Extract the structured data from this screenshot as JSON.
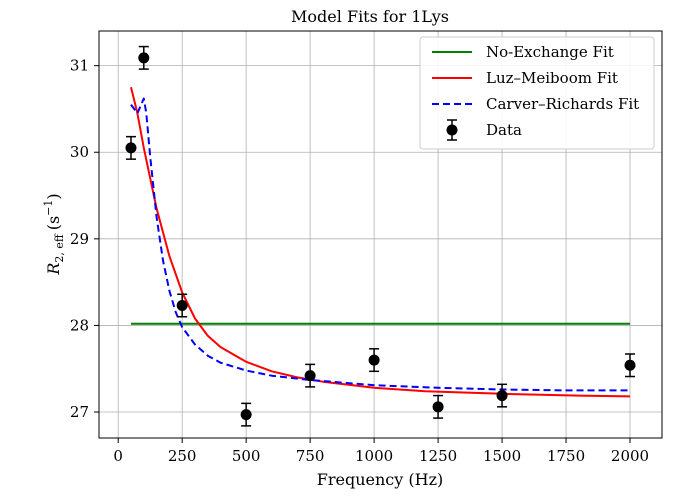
{
  "chart_data": {
    "type": "line",
    "title": "Model Fits for 1Lys",
    "xlabel": "Frequency (Hz)",
    "ylabel": "R2,eff (s−1)",
    "ylabel_parts": {
      "base": "R",
      "sub": "2, eff",
      "unit_open": "(s",
      "unit_sup": "−1",
      "unit_close": ")"
    },
    "xlim": [
      -75,
      2125
    ],
    "ylim": [
      26.7,
      31.4
    ],
    "xticks": [
      0,
      250,
      500,
      750,
      1000,
      1250,
      1500,
      1750,
      2000
    ],
    "xtick_labels": [
      "0",
      "250",
      "500",
      "750",
      "1000",
      "1250",
      "1500",
      "1750",
      "2000"
    ],
    "yticks": [
      27,
      28,
      29,
      30,
      31
    ],
    "ytick_labels": [
      "27",
      "28",
      "29",
      "30",
      "31"
    ],
    "grid": true,
    "legend_position": "top-right",
    "series": [
      {
        "name": "No-Exchange Fit",
        "kind": "line",
        "color": "#008000",
        "dash": "solid",
        "x": [
          50,
          2000
        ],
        "y": [
          28.02,
          28.02
        ]
      },
      {
        "name": "Luz–Meiboom Fit",
        "kind": "line",
        "color": "#ff0000",
        "dash": "solid",
        "x": [
          50,
          75,
          100,
          150,
          200,
          250,
          300,
          350,
          400,
          500,
          600,
          700,
          800,
          1000,
          1200,
          1500,
          1800,
          2000
        ],
        "y": [
          30.75,
          30.45,
          30.05,
          29.35,
          28.8,
          28.38,
          28.08,
          27.88,
          27.75,
          27.58,
          27.47,
          27.4,
          27.35,
          27.28,
          27.24,
          27.21,
          27.19,
          27.18
        ]
      },
      {
        "name": "Carver–Richards Fit",
        "kind": "line",
        "color": "#0000ff",
        "dash": "dashed",
        "x": [
          50,
          75,
          90,
          100,
          110,
          125,
          150,
          175,
          200,
          225,
          250,
          300,
          350,
          400,
          500,
          600,
          750,
          1000,
          1250,
          1500,
          1750,
          2000
        ],
        "y": [
          30.55,
          30.45,
          30.55,
          30.62,
          30.45,
          29.95,
          29.25,
          28.75,
          28.4,
          28.15,
          27.98,
          27.78,
          27.65,
          27.57,
          27.48,
          27.42,
          27.37,
          27.31,
          27.28,
          27.26,
          27.25,
          27.25
        ]
      },
      {
        "name": "Data",
        "kind": "errorbar",
        "color": "#000000",
        "x": [
          50,
          100,
          250,
          500,
          750,
          1000,
          1250,
          1500,
          2000
        ],
        "y": [
          30.05,
          31.09,
          28.23,
          26.97,
          27.42,
          27.6,
          27.06,
          27.19,
          27.54
        ],
        "err": [
          0.13,
          0.13,
          0.13,
          0.13,
          0.13,
          0.13,
          0.13,
          0.13,
          0.13
        ]
      }
    ]
  }
}
